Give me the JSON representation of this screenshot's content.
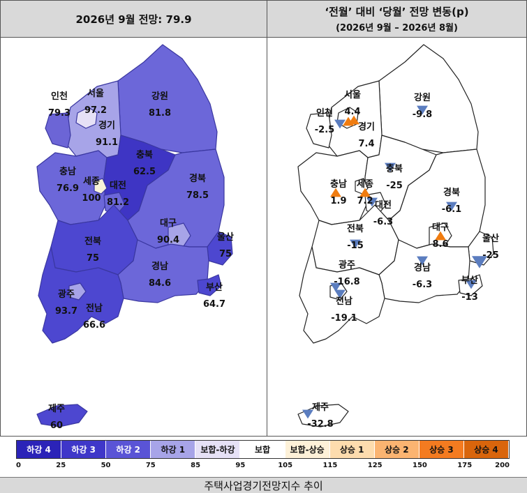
{
  "headers": {
    "left_title": "2026년 9월 전망: 79.9",
    "right_title": "‘전월’ 대비 ‘당월’ 전망 변동(p)",
    "right_subtitle": "(2026년 9월 – 2026년 8월)"
  },
  "left_map": {
    "regions": [
      {
        "id": "seoul",
        "name": "서울",
        "value": "97.2",
        "color": "#e6e1f6"
      },
      {
        "id": "incheon",
        "name": "인천",
        "value": "79.3",
        "color": "#6c65d6"
      },
      {
        "id": "gyeonggi",
        "name": "경기",
        "value": "91.1",
        "color": "#a7a4e8"
      },
      {
        "id": "gangwon",
        "name": "강원",
        "value": "81.8",
        "color": "#6c67d9"
      },
      {
        "id": "chungbuk",
        "name": "충북",
        "value": "62.5",
        "color": "#3e35c4"
      },
      {
        "id": "chungnam",
        "name": "충남",
        "value": "76.9",
        "color": "#6c67d9"
      },
      {
        "id": "sejong",
        "name": "세종",
        "value": "100",
        "color": "#f8f3d8"
      },
      {
        "id": "daejeon",
        "name": "대전",
        "value": "81.2",
        "color": "#6c67d9"
      },
      {
        "id": "gyeongbuk",
        "name": "경북",
        "value": "78.5",
        "color": "#6c67d9"
      },
      {
        "id": "daegu",
        "name": "대구",
        "value": "90.4",
        "color": "#a7a4e8"
      },
      {
        "id": "ulsan",
        "name": "울산",
        "value": "75",
        "color": "#4d47d0"
      },
      {
        "id": "jeonbuk",
        "name": "전북",
        "value": "75",
        "color": "#4d47d0"
      },
      {
        "id": "gyeongnam",
        "name": "경남",
        "value": "84.6",
        "color": "#6c67d9"
      },
      {
        "id": "busan",
        "name": "부산",
        "value": "64.7",
        "color": "#4d47d0"
      },
      {
        "id": "gwangju",
        "name": "광주",
        "value": "93.7",
        "color": "#a7a4e8"
      },
      {
        "id": "jeonnam",
        "name": "전남",
        "value": "66.6",
        "color": "#4d47d0"
      },
      {
        "id": "jeju",
        "name": "제주",
        "value": "60",
        "color": "#4d47d0"
      }
    ]
  },
  "right_map": {
    "regions": [
      {
        "id": "seoul",
        "name": "서울",
        "change": "4.4",
        "direction": "up"
      },
      {
        "id": "incheon",
        "name": "인천",
        "change": "-2.5",
        "direction": "down"
      },
      {
        "id": "gyeonggi",
        "name": "경기",
        "change": "7.4",
        "direction": "up"
      },
      {
        "id": "gangwon",
        "name": "강원",
        "change": "-9.8",
        "direction": "down"
      },
      {
        "id": "chungbuk",
        "name": "충북",
        "change": "-25",
        "direction": "down"
      },
      {
        "id": "chungnam",
        "name": "충남",
        "change": "1.9",
        "direction": "up"
      },
      {
        "id": "sejong",
        "name": "세종",
        "change": "7.2",
        "direction": "up"
      },
      {
        "id": "daejeon",
        "name": "대전",
        "change": "-6.3",
        "direction": "down"
      },
      {
        "id": "gyeongbuk",
        "name": "경북",
        "change": "-6.1",
        "direction": "down"
      },
      {
        "id": "daegu",
        "name": "대구",
        "change": "8.6",
        "direction": "up"
      },
      {
        "id": "ulsan",
        "name": "울산",
        "change": "-25",
        "direction": "down"
      },
      {
        "id": "jeonbuk",
        "name": "전북",
        "change": "-15",
        "direction": "down"
      },
      {
        "id": "gyeongnam",
        "name": "경남",
        "change": "-6.3",
        "direction": "down"
      },
      {
        "id": "busan",
        "name": "부산",
        "change": "-13",
        "direction": "down"
      },
      {
        "id": "gwangju",
        "name": "광주",
        "change": "-16.8",
        "direction": "down"
      },
      {
        "id": "jeonnam",
        "name": "전남",
        "change": "-19.1",
        "direction": "down"
      },
      {
        "id": "jeju",
        "name": "제주",
        "change": "-32.8",
        "direction": "down"
      }
    ],
    "up_color": "#f07c10",
    "down_color": "#5b7dbf"
  },
  "legend": {
    "items": [
      {
        "label": "하강 4",
        "color": "#2b23b8",
        "text_color": "#ffffff"
      },
      {
        "label": "하강 3",
        "color": "#3f37c9",
        "text_color": "#ffffff"
      },
      {
        "label": "하강 2",
        "color": "#5a54d6",
        "text_color": "#ffffff"
      },
      {
        "label": "하강 1",
        "color": "#a7a4e8",
        "text_color": "#111111"
      },
      {
        "label": "보합-하강",
        "color": "#e6e1f6",
        "text_color": "#111111"
      },
      {
        "label": "보합",
        "color": "#ffffff",
        "text_color": "#111111"
      },
      {
        "label": "보합-상승",
        "color": "#fdf1d8",
        "text_color": "#111111"
      },
      {
        "label": "상승 1",
        "color": "#fddcae",
        "text_color": "#111111"
      },
      {
        "label": "상승 2",
        "color": "#fbb471",
        "text_color": "#111111"
      },
      {
        "label": "상승 3",
        "color": "#f47b20",
        "text_color": "#111111"
      },
      {
        "label": "상승 4",
        "color": "#d9650c",
        "text_color": "#111111"
      }
    ],
    "ticks": [
      "0",
      "25",
      "50",
      "75",
      "85",
      "95",
      "105",
      "115",
      "125",
      "150",
      "175",
      "200"
    ]
  },
  "footer": {
    "title": "주택사업경기전망지수 추이"
  }
}
